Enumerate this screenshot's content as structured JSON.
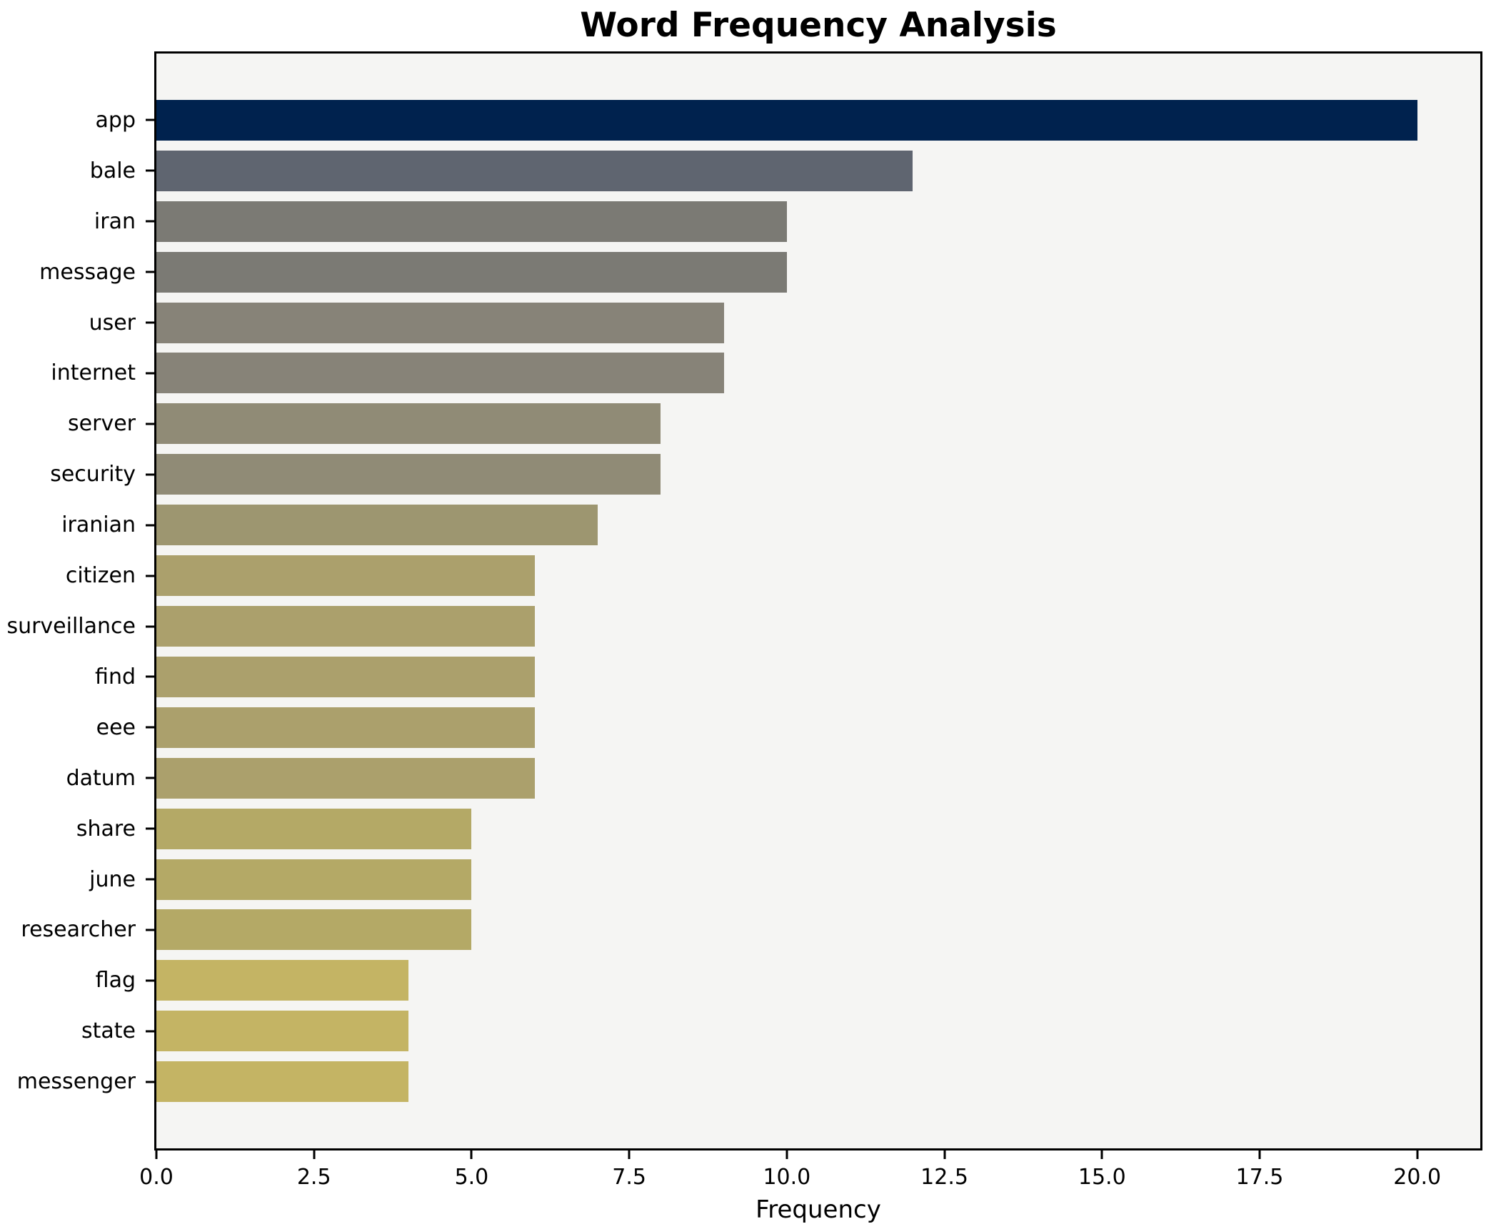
{
  "header": {
    "title": "Word Frequency Analysis"
  },
  "chart_data": {
    "type": "bar",
    "orientation": "horizontal",
    "title": "Word Frequency Analysis",
    "xlabel": "Frequency",
    "ylabel": "",
    "xlim": [
      0,
      21
    ],
    "grid": false,
    "plot_background": "#f5f5f3",
    "spine_color": "#000000",
    "categories": [
      "app",
      "bale",
      "iran",
      "message",
      "user",
      "internet",
      "server",
      "security",
      "iranian",
      "citizen",
      "surveillance",
      "find",
      "eee",
      "datum",
      "share",
      "june",
      "researcher",
      "flag",
      "state",
      "messenger"
    ],
    "values": [
      20,
      12,
      10,
      10,
      9,
      9,
      8,
      8,
      7,
      6,
      6,
      6,
      6,
      6,
      5,
      5,
      5,
      4,
      4,
      4
    ],
    "bar_colors": [
      "#00224e",
      "#5f6570",
      "#7b7a74",
      "#7b7a74",
      "#878378",
      "#878378",
      "#908b76",
      "#908b76",
      "#9d9670",
      "#aba06c",
      "#aba06c",
      "#aba06c",
      "#aba06c",
      "#aba06c",
      "#b4a966",
      "#b4a966",
      "#b4a966",
      "#c4b464",
      "#c4b464",
      "#c4b464"
    ],
    "x_ticks": [
      {
        "value": 0,
        "label": "0.0"
      },
      {
        "value": 2.5,
        "label": "2.5"
      },
      {
        "value": 5,
        "label": "5.0"
      },
      {
        "value": 7.5,
        "label": "7.5"
      },
      {
        "value": 10,
        "label": "10.0"
      },
      {
        "value": 12.5,
        "label": "12.5"
      },
      {
        "value": 15,
        "label": "15.0"
      },
      {
        "value": 17.5,
        "label": "17.5"
      },
      {
        "value": 20,
        "label": "20.0"
      }
    ]
  }
}
